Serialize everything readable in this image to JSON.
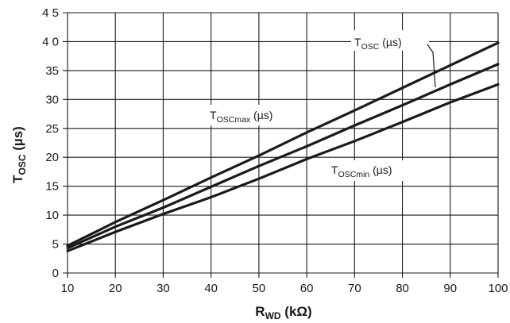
{
  "chart_data": {
    "type": "line",
    "xlabel_main": "R",
    "xlabel_sub": "WD",
    "xlabel_unit": " (kΩ)",
    "ylabel_main": "T",
    "ylabel_sub": "OSC",
    "ylabel_unit": " (µs)",
    "xlim": [
      10,
      100
    ],
    "ylim": [
      0,
      45
    ],
    "grid": true,
    "x_ticks": [
      10,
      20,
      30,
      40,
      50,
      60,
      70,
      80,
      90,
      100
    ],
    "y_ticks": [
      0,
      5,
      10,
      15,
      20,
      25,
      30,
      35,
      40,
      45
    ],
    "x_tick_labels": [
      "10",
      "20",
      "30",
      "40",
      "50",
      "60",
      "70",
      "80",
      "90",
      "100"
    ],
    "y_tick_labels": [
      "0",
      "5",
      "10",
      "15",
      "20",
      "25",
      "30",
      "35",
      "4 0",
      "4 5"
    ],
    "x": [
      10,
      20,
      30,
      40,
      50,
      60,
      70,
      80,
      90,
      100
    ],
    "series": [
      {
        "name": "T_OSCmax (µs)",
        "values": [
          4.7,
          8.8,
          12.6,
          16.5,
          20.3,
          24.3,
          28.1,
          32.0,
          35.9,
          39.8
        ]
      },
      {
        "name": "T_OSC (µs)",
        "values": [
          4.3,
          8.0,
          11.3,
          14.9,
          18.5,
          21.9,
          25.5,
          29.0,
          32.6,
          36.1
        ]
      },
      {
        "name": "T_OSCmin (µs)",
        "values": [
          3.8,
          7.1,
          10.2,
          13.1,
          16.3,
          19.7,
          22.8,
          26.1,
          29.5,
          32.6
        ]
      }
    ],
    "annotations": [
      {
        "main": "T",
        "sub": "OSC",
        "rest": " (µs)"
      },
      {
        "main": "T",
        "sub": "OSCmax",
        "rest": " (µs)"
      },
      {
        "main": "T",
        "sub": "OSCmin",
        "rest": " (µs)"
      }
    ]
  }
}
